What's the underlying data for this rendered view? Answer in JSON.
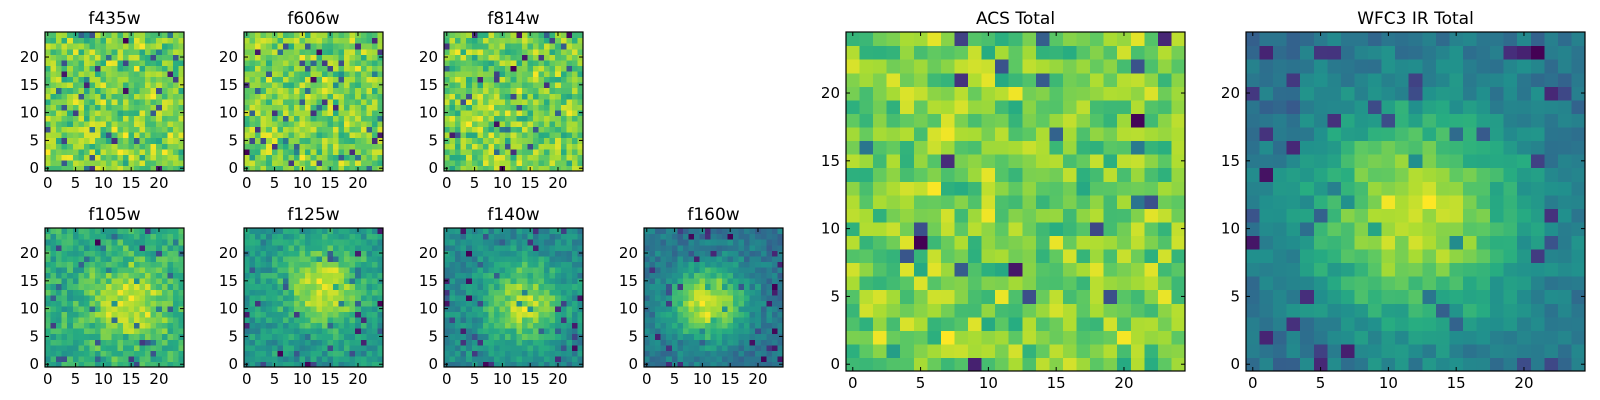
{
  "figure": {
    "description_free": true
  },
  "chart_data": [
    {
      "type": "heatmap",
      "title": "f435w",
      "xlabel": "",
      "ylabel": "",
      "xlim": [
        -0.5,
        24.5
      ],
      "ylim": [
        -0.5,
        24.5
      ],
      "xticks": [
        0,
        5,
        10,
        15,
        20
      ],
      "yticks": [
        0,
        5,
        10,
        15,
        20
      ],
      "grid_size": 25,
      "colormap": "viridis",
      "pattern": "noise",
      "seed": 11
    },
    {
      "type": "heatmap",
      "title": "f606w",
      "xlabel": "",
      "ylabel": "",
      "xlim": [
        -0.5,
        24.5
      ],
      "ylim": [
        -0.5,
        24.5
      ],
      "xticks": [
        0,
        5,
        10,
        15,
        20
      ],
      "yticks": [
        0,
        5,
        10,
        15,
        20
      ],
      "grid_size": 25,
      "colormap": "viridis",
      "pattern": "noise",
      "seed": 23
    },
    {
      "type": "heatmap",
      "title": "f814w",
      "xlabel": "",
      "ylabel": "",
      "xlim": [
        -0.5,
        24.5
      ],
      "ylim": [
        -0.5,
        24.5
      ],
      "xticks": [
        0,
        5,
        10,
        15,
        20
      ],
      "yticks": [
        0,
        5,
        10,
        15,
        20
      ],
      "grid_size": 25,
      "colormap": "viridis",
      "pattern": "noise",
      "seed": 37
    },
    {
      "type": "heatmap",
      "title": "f105w",
      "xlabel": "",
      "ylabel": "",
      "xlim": [
        -0.5,
        24.5
      ],
      "ylim": [
        -0.5,
        24.5
      ],
      "xticks": [
        0,
        5,
        10,
        15,
        20
      ],
      "yticks": [
        0,
        5,
        10,
        15,
        20
      ],
      "grid_size": 25,
      "colormap": "viridis",
      "pattern": "blob",
      "blob_center": [
        15,
        11
      ],
      "blob_sigma": 5,
      "blob_strength": 0.35,
      "seed": 41
    },
    {
      "type": "heatmap",
      "title": "f125w",
      "xlabel": "",
      "ylabel": "",
      "xlim": [
        -0.5,
        24.5
      ],
      "ylim": [
        -0.5,
        24.5
      ],
      "xticks": [
        0,
        5,
        10,
        15,
        20
      ],
      "yticks": [
        0,
        5,
        10,
        15,
        20
      ],
      "grid_size": 25,
      "colormap": "viridis",
      "pattern": "blob",
      "blob_center": [
        14,
        14
      ],
      "blob_sigma": 5,
      "blob_strength": 0.45,
      "seed": 53
    },
    {
      "type": "heatmap",
      "title": "f140w",
      "xlabel": "",
      "ylabel": "",
      "xlim": [
        -0.5,
        24.5
      ],
      "ylim": [
        -0.5,
        24.5
      ],
      "xticks": [
        0,
        5,
        10,
        15,
        20
      ],
      "yticks": [
        0,
        5,
        10,
        15,
        20
      ],
      "grid_size": 25,
      "colormap": "viridis",
      "pattern": "blob",
      "blob_center": [
        14,
        11
      ],
      "blob_sigma": 5,
      "blob_strength": 0.5,
      "seed": 67
    },
    {
      "type": "heatmap",
      "title": "f160w",
      "xlabel": "",
      "ylabel": "",
      "xlim": [
        -0.5,
        24.5
      ],
      "ylim": [
        -0.5,
        24.5
      ],
      "xticks": [
        0,
        5,
        10,
        15,
        20
      ],
      "yticks": [
        0,
        5,
        10,
        15,
        20
      ],
      "grid_size": 25,
      "colormap": "viridis",
      "pattern": "blob",
      "blob_center": [
        11,
        11
      ],
      "blob_sigma": 4.5,
      "blob_strength": 0.65,
      "seed": 79
    },
    {
      "type": "heatmap",
      "title": "ACS Total",
      "xlabel": "",
      "ylabel": "",
      "xlim": [
        -0.5,
        24.5
      ],
      "ylim": [
        -0.5,
        24.5
      ],
      "xticks": [
        0,
        5,
        10,
        15,
        20
      ],
      "yticks": [
        0,
        5,
        10,
        15,
        20
      ],
      "grid_size": 25,
      "colormap": "viridis",
      "pattern": "noise",
      "seed": 97
    },
    {
      "type": "heatmap",
      "title": "WFC3 IR Total",
      "xlabel": "",
      "ylabel": "",
      "xlim": [
        -0.5,
        24.5
      ],
      "ylim": [
        -0.5,
        24.5
      ],
      "xticks": [
        0,
        5,
        10,
        15,
        20
      ],
      "yticks": [
        0,
        5,
        10,
        15,
        20
      ],
      "grid_size": 25,
      "colormap": "viridis",
      "pattern": "blob",
      "blob_center": [
        12,
        11
      ],
      "blob_sigma": 5.5,
      "blob_strength": 0.7,
      "seed": 113
    }
  ]
}
